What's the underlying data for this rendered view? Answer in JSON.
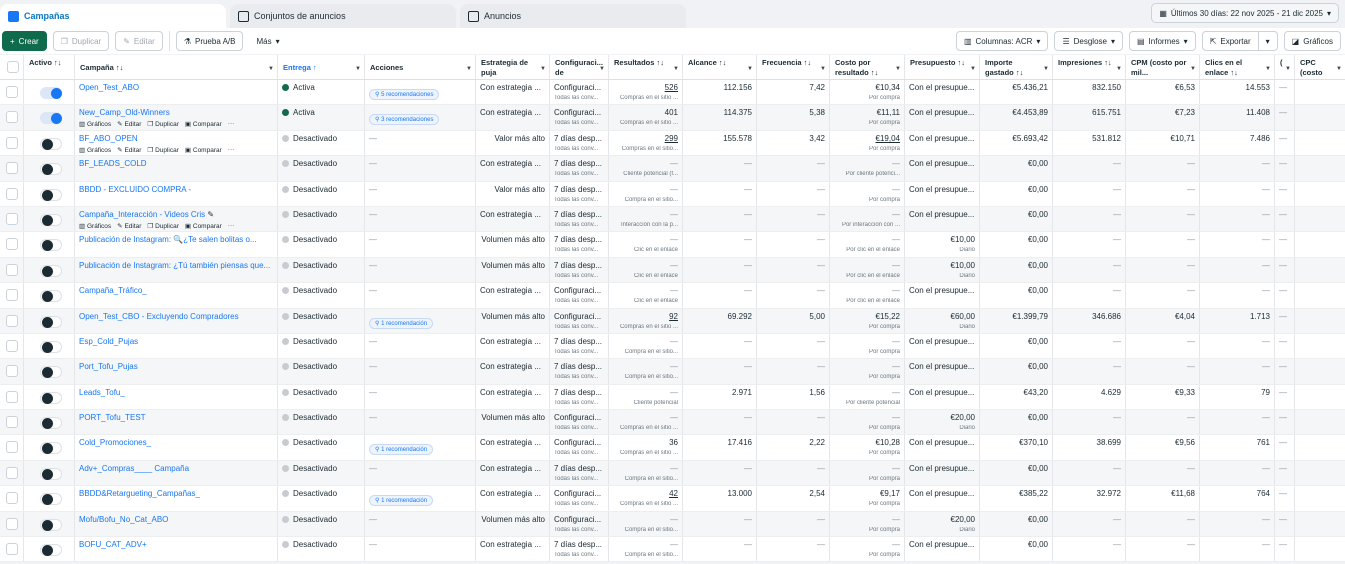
{
  "tabs": [
    {
      "label": "Campañas",
      "icon": "campaign-icon"
    },
    {
      "label": "Conjuntos de anuncios",
      "icon": "adsets-grid-icon"
    },
    {
      "label": "Anuncios",
      "icon": "ad-window-icon"
    }
  ],
  "date_range": "Últimos 30 días: 22 nov 2025 - 21 dic 2025",
  "toolbar": {
    "create": "Crear",
    "duplicate": "Duplicar",
    "edit": "Editar",
    "ab_test": "Prueba A/B",
    "more": "Más",
    "columns": "Columnas: ACR",
    "breakdown": "Desglose",
    "reports": "Informes",
    "export": "Exportar",
    "charts": "Gráficos"
  },
  "colors": {
    "accent": "#1877f2",
    "create": "#0f6b4b",
    "active": "#0f6b4b",
    "inactive": "#c8ccd0"
  },
  "headers": [
    "",
    "Activo ↑↓",
    "Campaña ↑↓",
    "Entrega ↑",
    "Acciones",
    "Estrategia de puja",
    "Configuraci... de atribución",
    "Resultados ↑↓",
    "Alcance ↑↓",
    "Frecuencia ↑↓",
    "Costo por resultado ↑↓",
    "Presupuesto ↑↓",
    "Importe gastado ↑↓",
    "Impresiones ↑↓",
    "CPM (costo por mil...",
    "Clics en el enlace ↑↓",
    "(",
    "CPC (costo por clic en"
  ],
  "hover_actions": [
    "Gráficos",
    "Editar",
    "Duplicar",
    "Comparar",
    "···"
  ],
  "rows": [
    {
      "name": "Open_Test_ABO",
      "on": true,
      "status": "Activa",
      "rec": "5 recomendaciones",
      "strategy": "Con estrategia ...",
      "attr": "Configuraci...",
      "attr_sub": "Todas las conv...",
      "res": "526",
      "res_u": true,
      "res_sub": "Compras en el sitio ...",
      "reach": "112.156",
      "freq": "7,42",
      "cost": "€10,34",
      "cost_sub": "Por compra",
      "budget": "Con el presupue...",
      "budget_sub": "",
      "spent": "€5.436,21",
      "impr": "832.150",
      "cpm": "€6,53",
      "clicks": "14.553",
      "extra": "—"
    },
    {
      "name": "New_Camp_Old-Winners",
      "on": true,
      "status": "Activa",
      "rec": "3 recomendaciones",
      "hover": true,
      "strategy": "Con estrategia ...",
      "attr": "Configuraci...",
      "attr_sub": "Todas las conv...",
      "res": "401",
      "res_sub": "Compras en el sitio ...",
      "reach": "114.375",
      "freq": "5,38",
      "cost": "€11,11",
      "cost_sub": "Por compra",
      "budget": "Con el presupue...",
      "budget_sub": "",
      "spent": "€4.453,89",
      "impr": "615.751",
      "cpm": "€7,23",
      "clicks": "11.408",
      "extra": "—"
    },
    {
      "name": "BF_ABO_OPEN",
      "on": false,
      "status": "Desactivado",
      "rec": "",
      "hover": true,
      "strategy": "Valor más alto",
      "attr": "7 días desp...",
      "attr_sub": "Todas las conv...",
      "res": "299",
      "res_u": true,
      "res_sub": "Compras en el sitio...",
      "reach": "155.578",
      "freq": "3,42",
      "cost": "€19,04",
      "cost_u": true,
      "cost_sub": "Por compra",
      "budget": "Con el presupue...",
      "budget_sub": "",
      "spent": "€5.693,42",
      "impr": "531.812",
      "cpm": "€10,71",
      "clicks": "7.486",
      "extra": "—"
    },
    {
      "name": "BF_LEADS_COLD",
      "on": false,
      "status": "Desactivado",
      "rec": "",
      "strategy": "Con estrategia ...",
      "attr": "7 días desp...",
      "attr_sub": "Todas las conv...",
      "res": "—",
      "res_sub": "Cliente potencial (f...",
      "reach": "—",
      "freq": "—",
      "cost": "—",
      "cost_sub": "Por cliente potenci...",
      "budget": "Con el presupue...",
      "budget_sub": "",
      "spent": "€0,00",
      "impr": "—",
      "cpm": "—",
      "clicks": "—",
      "extra": "—"
    },
    {
      "name": "BBDD - EXCLUIDO COMPRA -",
      "on": false,
      "status": "Desactivado",
      "rec": "",
      "strategy": "Valor más alto",
      "attr": "7 días desp...",
      "attr_sub": "Todas las conv...",
      "res": "—",
      "res_sub": "Compra en el sitio...",
      "reach": "—",
      "freq": "—",
      "cost": "—",
      "cost_sub": "Por compra",
      "budget": "Con el presupue...",
      "budget_sub": "",
      "spent": "€0,00",
      "impr": "—",
      "cpm": "—",
      "clicks": "—",
      "extra": "—"
    },
    {
      "name": "Campaña_Interacción - Videos Cris",
      "on": false,
      "status": "Desactivado",
      "rec": "",
      "hover": true,
      "pencil": true,
      "strategy": "Con estrategia ...",
      "attr": "7 días desp...",
      "attr_sub": "Todas las conv...",
      "res": "—",
      "res_sub": "Interacción con la p...",
      "reach": "—",
      "freq": "—",
      "cost": "—",
      "cost_sub": "Por interacción con ...",
      "budget": "Con el presupue...",
      "budget_sub": "",
      "spent": "€0,00",
      "impr": "—",
      "cpm": "—",
      "clicks": "—",
      "extra": "—"
    },
    {
      "name": "Publicación de Instagram: 🔍¿Te salen bolitas o...",
      "on": false,
      "status": "Desactivado",
      "rec": "",
      "strategy": "Volumen más alto",
      "attr": "7 días desp...",
      "attr_sub": "Todas las conv...",
      "res": "—",
      "res_sub": "Clic en el enlace",
      "reach": "—",
      "freq": "—",
      "cost": "—",
      "cost_sub": "Por clic en el enlace",
      "budget": "€10,00",
      "budget_sub": "Diario",
      "spent": "€0,00",
      "impr": "—",
      "cpm": "—",
      "clicks": "—",
      "extra": "—"
    },
    {
      "name": "Publicación de Instagram: ¿Tú también piensas que...",
      "on": false,
      "status": "Desactivado",
      "rec": "",
      "strategy": "Volumen más alto",
      "attr": "7 días desp...",
      "attr_sub": "Todas las conv...",
      "res": "—",
      "res_sub": "Clic en el enlace",
      "reach": "—",
      "freq": "—",
      "cost": "—",
      "cost_sub": "Por clic en el enlace",
      "budget": "€10,00",
      "budget_sub": "Diario",
      "spent": "€0,00",
      "impr": "—",
      "cpm": "—",
      "clicks": "—",
      "extra": "—"
    },
    {
      "name": "Campaña_Tráfico_",
      "on": false,
      "status": "Desactivado",
      "rec": "",
      "strategy": "Con estrategia ...",
      "attr": "Configuraci...",
      "attr_sub": "Todas las conv...",
      "res": "—",
      "res_sub": "Clic en el enlace",
      "reach": "—",
      "freq": "—",
      "cost": "—",
      "cost_sub": "Por clic en el enlace",
      "budget": "Con el presupue...",
      "budget_sub": "",
      "spent": "€0,00",
      "impr": "—",
      "cpm": "—",
      "clicks": "—",
      "extra": "—"
    },
    {
      "name": "Open_Test_CBO - Excluyendo Compradores",
      "on": false,
      "status": "Desactivado",
      "rec": "1 recomendación",
      "strategy": "Volumen más alto",
      "attr": "Configuraci...",
      "attr_sub": "Todas las conv...",
      "res": "92",
      "res_u": true,
      "res_sub": "Compras en el sitio ...",
      "reach": "69.292",
      "freq": "5,00",
      "cost": "€15,22",
      "cost_sub": "Por compra",
      "budget": "€60,00",
      "budget_sub": "Diario",
      "spent": "€1.399,79",
      "impr": "346.686",
      "cpm": "€4,04",
      "clicks": "1.713",
      "extra": "—"
    },
    {
      "name": "Esp_Cold_Pujas",
      "on": false,
      "status": "Desactivado",
      "rec": "",
      "strategy": "Con estrategia ...",
      "attr": "7 días desp...",
      "attr_sub": "Todas las conv...",
      "res": "—",
      "res_sub": "Compra en el sitio...",
      "reach": "—",
      "freq": "—",
      "cost": "—",
      "cost_sub": "Por compra",
      "budget": "Con el presupue...",
      "budget_sub": "",
      "spent": "€0,00",
      "impr": "—",
      "cpm": "—",
      "clicks": "—",
      "extra": "—"
    },
    {
      "name": "Port_Tofu_Pujas",
      "on": false,
      "status": "Desactivado",
      "rec": "",
      "strategy": "Con estrategia ...",
      "attr": "7 días desp...",
      "attr_sub": "Todas las conv...",
      "res": "—",
      "res_sub": "Compra en el sitio...",
      "reach": "—",
      "freq": "—",
      "cost": "—",
      "cost_sub": "Por compra",
      "budget": "Con el presupue...",
      "budget_sub": "",
      "spent": "€0,00",
      "impr": "—",
      "cpm": "—",
      "clicks": "—",
      "extra": "—"
    },
    {
      "name": "Leads_Tofu_",
      "on": false,
      "status": "Desactivado",
      "rec": "",
      "strategy": "Con estrategia ...",
      "attr": "7 días desp...",
      "attr_sub": "Todas las conv...",
      "res": "—",
      "res_sub": "Cliente potencial",
      "reach": "2.971",
      "freq": "1,56",
      "cost": "—",
      "cost_sub": "Por cliente potencial",
      "budget": "Con el presupue...",
      "budget_sub": "",
      "spent": "€43,20",
      "impr": "4.629",
      "cpm": "€9,33",
      "clicks": "79",
      "extra": "—"
    },
    {
      "name": "PORT_Tofu_TEST",
      "on": false,
      "status": "Desactivado",
      "rec": "",
      "strategy": "Volumen más alto",
      "attr": "Configuraci...",
      "attr_sub": "Todas las conv...",
      "res": "—",
      "res_sub": "Compras en el sitio ...",
      "reach": "—",
      "freq": "—",
      "cost": "—",
      "cost_sub": "Por compra",
      "budget": "€20,00",
      "budget_sub": "Diario",
      "spent": "€0,00",
      "impr": "—",
      "cpm": "—",
      "clicks": "—",
      "extra": "—"
    },
    {
      "name": "Cold_Promociones_",
      "on": false,
      "status": "Desactivado",
      "rec": "1 recomendación",
      "strategy": "Con estrategia ...",
      "attr": "Configuraci...",
      "attr_sub": "Todas las conv...",
      "res": "36",
      "res_sub": "Compras en el sitio ...",
      "reach": "17.416",
      "freq": "2,22",
      "cost": "€10,28",
      "cost_sub": "Por compra",
      "budget": "Con el presupue...",
      "budget_sub": "",
      "spent": "€370,10",
      "impr": "38.699",
      "cpm": "€9,56",
      "clicks": "761",
      "extra": "—"
    },
    {
      "name": "Adv+_Compras____ Campaña",
      "on": false,
      "status": "Desactivado",
      "rec": "",
      "strategy": "Con estrategia ...",
      "attr": "7 días desp...",
      "attr_sub": "Todas las conv...",
      "res": "—",
      "res_sub": "Compra en el sitio...",
      "reach": "—",
      "freq": "—",
      "cost": "—",
      "cost_sub": "Por compra",
      "budget": "Con el presupue...",
      "budget_sub": "",
      "spent": "€0,00",
      "impr": "—",
      "cpm": "—",
      "clicks": "—",
      "extra": "—"
    },
    {
      "name": "BBDD&Retargueting_Campañas_",
      "on": false,
      "status": "Desactivado",
      "rec": "1 recomendación",
      "strategy": "Con estrategia ...",
      "attr": "Configuraci...",
      "attr_sub": "Todas las conv...",
      "res": "42",
      "res_u": true,
      "res_sub": "Compras en el sitio ...",
      "reach": "13.000",
      "freq": "2,54",
      "cost": "€9,17",
      "cost_sub": "Por compra",
      "budget": "Con el presupue...",
      "budget_sub": "",
      "spent": "€385,22",
      "impr": "32.972",
      "cpm": "€11,68",
      "clicks": "764",
      "extra": "—"
    },
    {
      "name": "Mofu/Bofu_No_Cat_ABO",
      "on": false,
      "status": "Desactivado",
      "rec": "",
      "strategy": "Volumen más alto",
      "attr": "Configuraci...",
      "attr_sub": "Todas las conv...",
      "res": "—",
      "res_sub": "Compra en el sitio...",
      "reach": "—",
      "freq": "—",
      "cost": "—",
      "cost_sub": "Por compra",
      "budget": "€20,00",
      "budget_sub": "Diario",
      "spent": "€0,00",
      "impr": "—",
      "cpm": "—",
      "clicks": "—",
      "extra": "—"
    },
    {
      "name": "BOFU_CAT_ADV+",
      "on": false,
      "status": "Desactivado",
      "rec": "",
      "strategy": "Con estrategia ...",
      "attr": "7 días desp...",
      "attr_sub": "Todas las conv...",
      "res": "—",
      "res_sub": "Compra en el sitio...",
      "reach": "—",
      "freq": "—",
      "cost": "—",
      "cost_sub": "Por compra",
      "budget": "Con el presupue...",
      "budget_sub": "",
      "spent": "€0,00",
      "impr": "—",
      "cpm": "—",
      "clicks": "—",
      "extra": "—"
    }
  ]
}
